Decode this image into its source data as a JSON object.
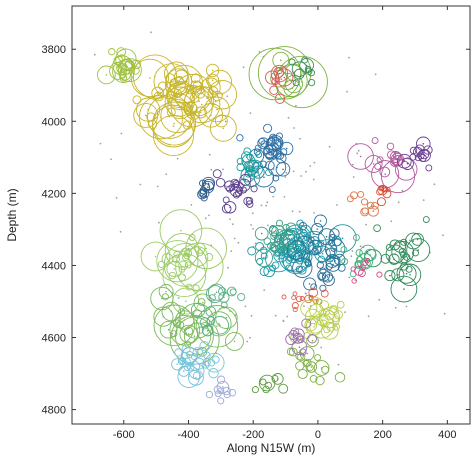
{
  "chart_data": {
    "type": "scatter",
    "title": "",
    "xlabel": "Along N15W (m)",
    "ylabel": "Depth (m)",
    "xlim": [
      -760,
      470
    ],
    "ylim": [
      4840,
      3680
    ],
    "y_inverted": true,
    "grid": false,
    "legend": "none",
    "x_ticks": [
      -600,
      -400,
      -200,
      0,
      200,
      400
    ],
    "y_ticks": [
      3800,
      4000,
      4200,
      4400,
      4600,
      4800
    ],
    "x_tick_labels": [
      "-600",
      "-400",
      "-200",
      "0",
      "200",
      "400"
    ],
    "y_tick_labels": [
      "3800",
      "4000",
      "4200",
      "4400",
      "4600",
      "4800"
    ],
    "marker": "open circle; radius scales with event size; small grey dots are unclustered events",
    "clusters": [
      {
        "color": "#c7b52a",
        "center": [
          -430,
          3930
        ],
        "spread": [
          140,
          70
        ],
        "count": 60,
        "r": [
          4,
          22
        ]
      },
      {
        "color": "#9dc13c",
        "center": [
          -600,
          3850
        ],
        "spread": [
          50,
          35
        ],
        "count": 22,
        "r": [
          3,
          12
        ]
      },
      {
        "color": "#7eb33f",
        "center": [
          -90,
          3880
        ],
        "spread": [
          40,
          45
        ],
        "count": 10,
        "r": [
          8,
          32
        ]
      },
      {
        "color": "#3d8f5a",
        "center": [
          -40,
          3860
        ],
        "spread": [
          30,
          40
        ],
        "count": 10,
        "r": [
          3,
          8
        ]
      },
      {
        "color": "#d75b5b",
        "center": [
          -120,
          3900
        ],
        "spread": [
          20,
          40
        ],
        "count": 8,
        "r": [
          3,
          9
        ]
      },
      {
        "color": "#2f6fa3",
        "center": [
          -150,
          4100
        ],
        "spread": [
          60,
          60
        ],
        "count": 40,
        "r": [
          3,
          10
        ]
      },
      {
        "color": "#1a9f9f",
        "center": [
          -210,
          4130
        ],
        "spread": [
          40,
          40
        ],
        "count": 18,
        "r": [
          3,
          9
        ]
      },
      {
        "color": "#5b3f8e",
        "center": [
          -250,
          4200
        ],
        "spread": [
          50,
          40
        ],
        "count": 22,
        "r": [
          3,
          8
        ]
      },
      {
        "color": "#2d5c8c",
        "center": [
          -350,
          4190
        ],
        "spread": [
          35,
          25
        ],
        "count": 10,
        "r": [
          3,
          7
        ]
      },
      {
        "color": "#b35a9e",
        "center": [
          200,
          4100
        ],
        "spread": [
          60,
          50
        ],
        "count": 16,
        "r": [
          3,
          18
        ]
      },
      {
        "color": "#6b3f93",
        "center": [
          300,
          4090
        ],
        "spread": [
          50,
          30
        ],
        "count": 14,
        "r": [
          3,
          8
        ]
      },
      {
        "color": "#e0764a",
        "center": [
          150,
          4220
        ],
        "spread": [
          40,
          25
        ],
        "count": 10,
        "r": [
          3,
          7
        ]
      },
      {
        "color": "#d94a3a",
        "center": [
          200,
          4200
        ],
        "spread": [
          30,
          15
        ],
        "count": 8,
        "r": [
          2,
          5
        ]
      },
      {
        "color": "#1f9aa8",
        "center": [
          -70,
          4350
        ],
        "spread": [
          90,
          60
        ],
        "count": 70,
        "r": [
          3,
          14
        ]
      },
      {
        "color": "#2c6f98",
        "center": [
          10,
          4380
        ],
        "spread": [
          60,
          70
        ],
        "count": 35,
        "r": [
          3,
          10
        ]
      },
      {
        "color": "#3fa080",
        "center": [
          -120,
          4330
        ],
        "spread": [
          50,
          50
        ],
        "count": 18,
        "r": [
          3,
          9
        ]
      },
      {
        "color": "#e2614a",
        "center": [
          -30,
          4490
        ],
        "spread": [
          60,
          25
        ],
        "count": 14,
        "r": [
          2,
          6
        ]
      },
      {
        "color": "#2e8a58",
        "center": [
          260,
          4360
        ],
        "spread": [
          70,
          60
        ],
        "count": 26,
        "r": [
          3,
          14
        ]
      },
      {
        "color": "#45b27b",
        "center": [
          130,
          4380
        ],
        "spread": [
          40,
          40
        ],
        "count": 12,
        "r": [
          3,
          9
        ]
      },
      {
        "color": "#d24c8a",
        "center": [
          140,
          4420
        ],
        "spread": [
          30,
          40
        ],
        "count": 8,
        "r": [
          2,
          6
        ]
      },
      {
        "color": "#9ccc65",
        "center": [
          -420,
          4400
        ],
        "spread": [
          60,
          80
        ],
        "count": 30,
        "r": [
          3,
          24
        ]
      },
      {
        "color": "#7aba5a",
        "center": [
          -370,
          4560
        ],
        "spread": [
          90,
          60
        ],
        "count": 30,
        "r": [
          3,
          26
        ]
      },
      {
        "color": "#5aaf87",
        "center": [
          -310,
          4520
        ],
        "spread": [
          50,
          60
        ],
        "count": 16,
        "r": [
          3,
          10
        ]
      },
      {
        "color": "#77c4dc",
        "center": [
          -380,
          4680
        ],
        "spread": [
          60,
          40
        ],
        "count": 30,
        "r": [
          3,
          12
        ]
      },
      {
        "color": "#9ea9d8",
        "center": [
          -290,
          4740
        ],
        "spread": [
          40,
          25
        ],
        "count": 10,
        "r": [
          3,
          8
        ]
      },
      {
        "color": "#b8cf4b",
        "center": [
          20,
          4550
        ],
        "spread": [
          60,
          50
        ],
        "count": 26,
        "r": [
          3,
          12
        ]
      },
      {
        "color": "#7fb046",
        "center": [
          -30,
          4660
        ],
        "spread": [
          60,
          60
        ],
        "count": 18,
        "r": [
          3,
          10
        ]
      },
      {
        "color": "#9c6fb0",
        "center": [
          -60,
          4600
        ],
        "spread": [
          40,
          40
        ],
        "count": 10,
        "r": [
          3,
          8
        ]
      },
      {
        "color": "#5d9b3e",
        "center": [
          -150,
          4720
        ],
        "spread": [
          40,
          30
        ],
        "count": 8,
        "r": [
          3,
          8
        ]
      }
    ],
    "background_dots": {
      "color": "#a0a0a0",
      "count": 140,
      "center": [
        -130,
        4270
      ],
      "spread": [
        280,
        280
      ]
    }
  }
}
